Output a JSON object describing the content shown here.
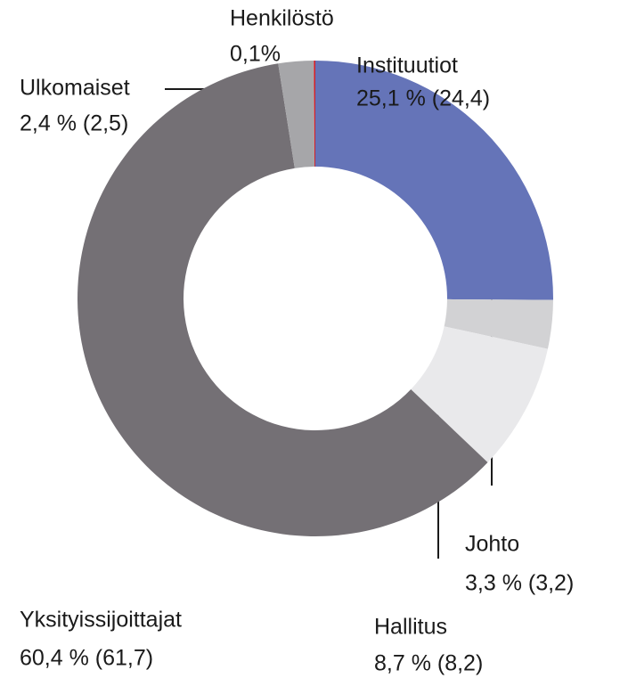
{
  "chart_data": {
    "type": "pie",
    "categories": [
      "Instituutiot",
      "Johto",
      "Hallitus",
      "Yksityissijoittajat",
      "Ulkomaiset",
      "Henkilöstö"
    ],
    "values": [
      25.1,
      3.3,
      8.7,
      60.4,
      2.4,
      0.1
    ],
    "value_labels": [
      "25,1 % (24,4)",
      "3,3 % (3,2)",
      "8,7 % (8,2)",
      "60,4 % (61,7)",
      "2,4 % (2,5)",
      "0,1%"
    ],
    "colors": [
      "#6574b8",
      "#d2d2d4",
      "#e9e9eb",
      "#747075",
      "#a6a6a9",
      "#d0202a"
    ]
  }
}
